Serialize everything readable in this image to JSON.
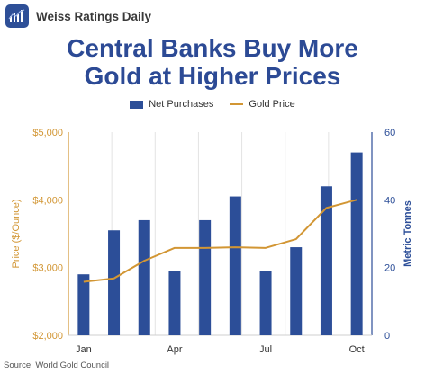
{
  "brand": {
    "name": "Weiss Ratings Daily",
    "logo_icon": "bar-chart-logo-icon",
    "logo_color": "#2e4f97"
  },
  "title_lines": [
    "Central Banks Buy More",
    "Gold at Higher Prices"
  ],
  "source": "Source: World Gold Council",
  "chart_data": {
    "type": "bar",
    "categories": [
      "Jan",
      "Feb",
      "Mar",
      "Apr",
      "May",
      "Jun",
      "Jul",
      "Aug",
      "Sep",
      "Oct"
    ],
    "x_tick_labels": [
      "Jan",
      "Apr",
      "Jul",
      "Oct"
    ],
    "series": [
      {
        "name": "Net Purchases",
        "type": "bar",
        "axis": "right",
        "color": "#2c4e98",
        "values": [
          18,
          31,
          34,
          19,
          34,
          41,
          19,
          26,
          44,
          54
        ]
      },
      {
        "name": "Gold Price",
        "type": "line",
        "axis": "left",
        "color": "#d29634",
        "values": [
          2790,
          2840,
          3100,
          3290,
          3290,
          3300,
          3290,
          3420,
          3880,
          4000
        ]
      }
    ],
    "ylabel_left": "Price ($/Ounce)",
    "ylabel_right": "Metric Tonnes",
    "ylim_left": [
      2000,
      5000
    ],
    "ylim_right": [
      0,
      60
    ],
    "yticks_left": [
      "$2,000",
      "$3,000",
      "$4,000",
      "$5,000"
    ],
    "yticks_right": [
      "0",
      "20",
      "40",
      "60"
    ],
    "left_axis_color": "#d29634",
    "right_axis_color": "#2c4e98",
    "grid": "vertical",
    "legend": "top-center"
  }
}
